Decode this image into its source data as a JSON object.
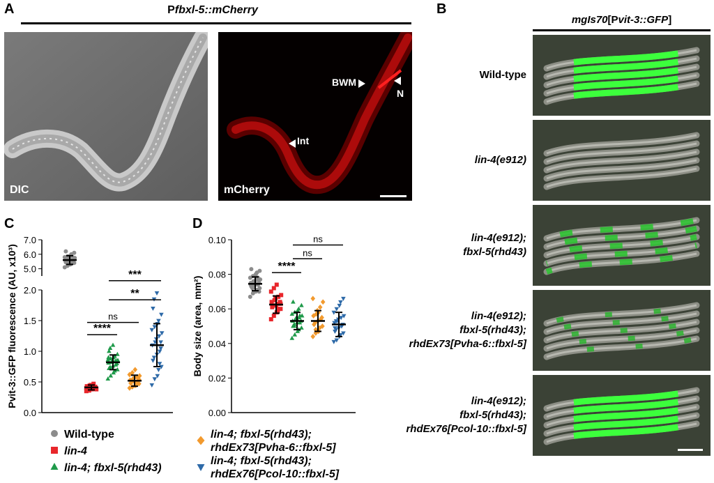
{
  "panels": {
    "A": {
      "letter": "A",
      "title_prefix": "P",
      "title_italic": "fbxl-5::mCherry",
      "images": [
        {
          "label": "DIC"
        },
        {
          "label": "mCherry",
          "annotations": [
            "BWM",
            "N",
            "Int"
          ]
        }
      ]
    },
    "B": {
      "letter": "B",
      "title_italic_a": "mgIs70",
      "title_b": "[P",
      "title_italic_c": "vit-3::GFP",
      "title_d": "]",
      "rows": [
        {
          "lines": [
            "Wild-type"
          ],
          "italic": false,
          "fluor": "high"
        },
        {
          "lines": [
            "lin-4(e912)"
          ],
          "italic": true,
          "fluor": "none"
        },
        {
          "lines": [
            "lin-4(e912);",
            "fbxl-5(rhd43)"
          ],
          "italic": true,
          "fluor": "medium"
        },
        {
          "lines": [
            "lin-4(e912);",
            "fbxl-5(rhd43);",
            "rhdEx73[Pvha-6::fbxl-5]"
          ],
          "italic": true,
          "fluor": "low"
        },
        {
          "lines": [
            "lin-4(e912);",
            "fbxl-5(rhd43);",
            "rhdEx76[Pcol-10::fbxl-5]"
          ],
          "italic": true,
          "fluor": "high"
        }
      ]
    },
    "C": {
      "letter": "C"
    },
    "D": {
      "letter": "D"
    }
  },
  "legend_left": [
    {
      "marker": "circle",
      "color": "#8c8c8c",
      "label": "Wild-type",
      "italic": false
    },
    {
      "marker": "square",
      "color": "#e8262b",
      "label": "lin-4",
      "italic": true
    },
    {
      "marker": "triangle",
      "color": "#1f9a4a",
      "label": "lin-4; fbxl-5(rhd43)",
      "italic": true
    }
  ],
  "legend_right": [
    {
      "marker": "diamond",
      "color": "#f29a2e",
      "line1": "lin-4; fbxl-5(rhd43);",
      "line2": "rhdEx73[Pvha-6::fbxl-5]"
    },
    {
      "marker": "inverted-triangle",
      "color": "#2e6aa8",
      "line1": "lin-4; fbxl-5(rhd43);",
      "line2": "rhdEx76[Pcol-10::fbxl-5]"
    }
  ],
  "chart_data": [
    {
      "type": "scatter",
      "panel": "C",
      "ylabel": "Pvit-3::GFP fluorescence (AU, x10³)",
      "y_axis_break": {
        "lower": [
          0.0,
          2.0
        ],
        "upper": [
          4.5,
          7.0
        ]
      },
      "yticks_lower": [
        "0.0",
        "0.5",
        "1.0",
        "1.5",
        "2.0"
      ],
      "yticks_upper": [
        "5.0",
        "6.0",
        "7.0"
      ],
      "groups": [
        {
          "name": "Wild-type",
          "color": "#8c8c8c",
          "marker": "circle",
          "mean": 5.6,
          "sd": 0.3,
          "values": [
            5.1,
            5.2,
            5.3,
            5.35,
            5.4,
            5.45,
            5.5,
            5.5,
            5.55,
            5.6,
            5.6,
            5.65,
            5.7,
            5.7,
            5.75,
            5.8,
            5.85,
            5.9,
            6.0,
            6.1,
            6.2,
            5.4,
            5.6,
            5.8
          ]
        },
        {
          "name": "lin-4",
          "color": "#e8262b",
          "marker": "square",
          "mean": 0.41,
          "sd": 0.04,
          "values": [
            0.35,
            0.36,
            0.38,
            0.39,
            0.4,
            0.4,
            0.41,
            0.41,
            0.42,
            0.42,
            0.43,
            0.44,
            0.45,
            0.47,
            0.38,
            0.4,
            0.43,
            0.41
          ]
        },
        {
          "name": "lin-4; fbxl-5(rhd43)",
          "color": "#1f9a4a",
          "marker": "triangle",
          "mean": 0.82,
          "sd": 0.12,
          "values": [
            0.55,
            0.6,
            0.65,
            0.68,
            0.7,
            0.72,
            0.74,
            0.76,
            0.78,
            0.8,
            0.81,
            0.82,
            0.83,
            0.84,
            0.85,
            0.86,
            0.88,
            0.9,
            0.92,
            0.95,
            1.0,
            1.05,
            1.1,
            0.78,
            0.85,
            0.9
          ]
        },
        {
          "name": "lin-4; fbxl-5(rhd43); rhdEx73",
          "color": "#f29a2e",
          "marker": "diamond",
          "mean": 0.52,
          "sd": 0.09,
          "values": [
            0.4,
            0.42,
            0.44,
            0.45,
            0.47,
            0.48,
            0.5,
            0.5,
            0.51,
            0.52,
            0.53,
            0.55,
            0.56,
            0.58,
            0.6,
            0.62,
            0.65,
            0.7,
            0.46,
            0.54
          ]
        },
        {
          "name": "lin-4; fbxl-5(rhd43); rhdEx76",
          "color": "#2e6aa8",
          "marker": "invtriangle",
          "mean": 1.1,
          "sd": 0.35,
          "values": [
            0.45,
            0.55,
            0.6,
            0.7,
            0.75,
            0.85,
            0.9,
            0.95,
            1.0,
            1.05,
            1.1,
            1.15,
            1.2,
            1.25,
            1.3,
            1.35,
            1.4,
            1.45,
            1.5,
            1.6,
            1.7,
            1.85,
            1.95,
            0.8,
            1.15
          ]
        }
      ],
      "significance": [
        {
          "from": 1,
          "to": 2,
          "label": "****",
          "y": 1.27
        },
        {
          "from": 1,
          "to": 3,
          "label": "ns",
          "y": 1.47
        },
        {
          "from": 2,
          "to": 4,
          "label": "**",
          "y": 1.84
        },
        {
          "from": 2,
          "to": 4,
          "label": "***",
          "y": 2.15
        }
      ]
    },
    {
      "type": "scatter",
      "panel": "D",
      "ylabel": "Body size (area, mm²)",
      "ylim": [
        0.0,
        0.1
      ],
      "yticks": [
        "0.00",
        "0.02",
        "0.04",
        "0.06",
        "0.08",
        "0.10"
      ],
      "groups": [
        {
          "name": "Wild-type",
          "color": "#8c8c8c",
          "marker": "circle",
          "mean": 0.0745,
          "sd": 0.004,
          "values": [
            0.067,
            0.069,
            0.07,
            0.071,
            0.072,
            0.073,
            0.073,
            0.074,
            0.074,
            0.075,
            0.075,
            0.076,
            0.076,
            0.077,
            0.077,
            0.078,
            0.079,
            0.08,
            0.081,
            0.082,
            0.083,
            0.072,
            0.075,
            0.078,
            0.07,
            0.074
          ]
        },
        {
          "name": "lin-4",
          "color": "#e8262b",
          "marker": "square",
          "mean": 0.0625,
          "sd": 0.005,
          "values": [
            0.054,
            0.056,
            0.058,
            0.059,
            0.06,
            0.061,
            0.062,
            0.062,
            0.063,
            0.064,
            0.064,
            0.065,
            0.066,
            0.067,
            0.068,
            0.07,
            0.072,
            0.074,
            0.06,
            0.063
          ]
        },
        {
          "name": "lin-4; fbxl-5(rhd43)",
          "color": "#1f9a4a",
          "marker": "triangle",
          "mean": 0.053,
          "sd": 0.005,
          "values": [
            0.043,
            0.045,
            0.047,
            0.048,
            0.049,
            0.05,
            0.051,
            0.052,
            0.052,
            0.053,
            0.053,
            0.054,
            0.055,
            0.055,
            0.056,
            0.057,
            0.058,
            0.059,
            0.06,
            0.062,
            0.064,
            0.05,
            0.054,
            0.056
          ]
        },
        {
          "name": "lin-4; fbxl-5(rhd43); rhdEx73",
          "color": "#f29a2e",
          "marker": "diamond",
          "mean": 0.053,
          "sd": 0.006,
          "values": [
            0.044,
            0.046,
            0.047,
            0.049,
            0.05,
            0.051,
            0.052,
            0.053,
            0.054,
            0.055,
            0.056,
            0.057,
            0.059,
            0.061,
            0.064,
            0.066,
            0.048,
            0.058
          ]
        },
        {
          "name": "lin-4; fbxl-5(rhd43); rhdEx76",
          "color": "#2e6aa8",
          "marker": "invtriangle",
          "mean": 0.051,
          "sd": 0.007,
          "values": [
            0.041,
            0.042,
            0.044,
            0.045,
            0.046,
            0.047,
            0.048,
            0.049,
            0.05,
            0.051,
            0.052,
            0.053,
            0.054,
            0.055,
            0.056,
            0.058,
            0.06,
            0.062,
            0.064,
            0.066,
            0.049,
            0.053
          ]
        }
      ],
      "significance": [
        {
          "from": 1,
          "to": 2,
          "label": "****",
          "y": 0.081
        },
        {
          "from": 2,
          "to": 3,
          "label": "ns",
          "y": 0.089
        },
        {
          "from": 2,
          "to": 4,
          "label": "ns",
          "y": 0.097
        }
      ]
    }
  ]
}
